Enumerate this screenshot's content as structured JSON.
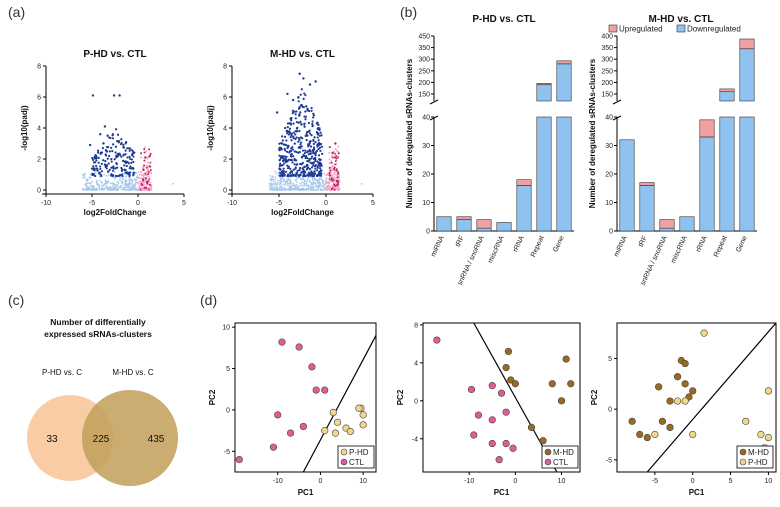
{
  "panel_labels": {
    "a": "(a)",
    "b": "(b)",
    "c": "(c)",
    "d": "(d)"
  },
  "colors": {
    "sig_down": "#1f3a93",
    "ns_down": "#a9c8ea",
    "sig_up": "#c2185b",
    "ns_up": "#f4a6c8",
    "bar_down": "#8fc2ef",
    "bar_up": "#f0a0a0",
    "venn_phd": "#f9c9a0",
    "venn_mhd": "#c29f58",
    "pca_phd": "#f2d68a",
    "pca_ctl": "#e35a9a",
    "pca_mhd": "#9a6a22"
  },
  "chart_data": [
    {
      "id": "volcano_phd",
      "type": "scatter",
      "title": "P-HD vs. CTL",
      "xlabel": "log2FoldChange",
      "ylabel": "-log10(padj)",
      "xlim": [
        -10,
        5
      ],
      "ylim": [
        0,
        8
      ],
      "xticks": [
        "-10",
        "-5",
        "0",
        "5"
      ],
      "yticks": [
        "0",
        "2",
        "4",
        "6",
        "8"
      ],
      "sig_down": [
        [
          -4.9,
          6.1
        ],
        [
          -2.6,
          6.1
        ],
        [
          -2.0,
          6.1
        ],
        [
          -4.1,
          3.6
        ],
        [
          -5.2,
          2.9
        ],
        [
          -3.6,
          4.1
        ],
        [
          -3.3,
          3.5
        ]
      ],
      "sig_up": [
        [
          0.6,
          1.3
        ],
        [
          0.8,
          2.1
        ],
        [
          1.0,
          0.5
        ]
      ]
    },
    {
      "id": "volcano_mhd",
      "type": "scatter",
      "title": "M-HD vs. CTL",
      "xlabel": "log2FoldChange",
      "ylabel": "-log10(padj)",
      "xlim": [
        -10,
        5
      ],
      "ylim": [
        0,
        8
      ],
      "xticks": [
        "-10",
        "-5",
        "0",
        "5"
      ],
      "yticks": [
        "0",
        "2",
        "4",
        "6",
        "8"
      ],
      "sig_down": [
        [
          -2.8,
          7.5
        ],
        [
          -2.4,
          7.2
        ],
        [
          -1.7,
          6.8
        ],
        [
          -1.1,
          7.0
        ],
        [
          -4.1,
          6.2
        ],
        [
          -3.5,
          5.8
        ],
        [
          -5.2,
          5.0
        ],
        [
          -2.1,
          5.4
        ]
      ],
      "sig_up": [
        [
          0.7,
          2.4
        ],
        [
          1.0,
          3.0
        ],
        [
          1.2,
          0.6
        ]
      ]
    },
    {
      "id": "bars_phd",
      "type": "bar",
      "stacked": true,
      "title": "P-HD vs. CTL",
      "ylabel": "Number of deregulated sRNAs-clusters",
      "categories": [
        "miRNA",
        "tRF",
        "snRNA / snoRNA",
        "miscRNA",
        "rRNA",
        "Repeat",
        "Gene"
      ],
      "lower_yticks": [
        "0",
        "10",
        "20",
        "30",
        "40"
      ],
      "upper_yticks": [
        "150",
        "200",
        "250",
        "300",
        "350",
        "450"
      ],
      "series": [
        {
          "name": "Downregulated",
          "values": [
            5,
            4,
            1,
            3,
            16,
            190,
            280
          ]
        },
        {
          "name": "Upregulated",
          "values": [
            0,
            1,
            3,
            0,
            2,
            6,
            13
          ]
        }
      ]
    },
    {
      "id": "bars_mhd",
      "type": "bar",
      "stacked": true,
      "title": "M-HD vs. CTL",
      "ylabel": "Number of deregulated sRNAs-clusters",
      "categories": [
        "miRNA",
        "tRF",
        "snRNA / snoRNA",
        "miscRNA",
        "rRNA",
        "Repeat",
        "Gene"
      ],
      "legend": [
        "Upregulated",
        "Downregulated"
      ],
      "lower_yticks": [
        "0",
        "10",
        "20",
        "30",
        "40"
      ],
      "upper_yticks": [
        "150",
        "200",
        "250",
        "300",
        "350",
        "400"
      ],
      "series": [
        {
          "name": "Downregulated",
          "values": [
            32,
            16,
            1,
            5,
            33,
            160,
            345
          ]
        },
        {
          "name": "Upregulated",
          "values": [
            0,
            1,
            3,
            0,
            6,
            12,
            42
          ]
        }
      ]
    },
    {
      "id": "venn",
      "type": "venn",
      "title_lines": [
        "Number of differentially",
        "expressed sRNAs-clusters"
      ],
      "set_labels": [
        "P-HD vs. C",
        "M-HD vs. C"
      ],
      "values": {
        "only_a": "33",
        "both": "225",
        "only_b": "435"
      }
    },
    {
      "id": "pca_phd_ctl",
      "type": "scatter",
      "xlabel": "PC1",
      "ylabel": "PC2",
      "xlim": [
        -20,
        13
      ],
      "ylim": [
        -7.5,
        10.5
      ],
      "xticks": [
        -10,
        0,
        10
      ],
      "yticks": [
        -5,
        0,
        5,
        10
      ],
      "divider": [
        [
          -4,
          -7.5
        ],
        [
          13,
          9
        ]
      ],
      "legend": [
        "P-HD",
        "CTL"
      ],
      "groups": [
        {
          "name": "P-HD",
          "points": [
            [
              1,
              -2.5
            ],
            [
              4,
              -1.5
            ],
            [
              3.5,
              -2.8
            ],
            [
              6,
              -2.2
            ],
            [
              7,
              -2.6
            ],
            [
              9.5,
              0.2
            ],
            [
              10,
              -0.6
            ],
            [
              10,
              -1.8
            ],
            [
              9,
              0.2
            ],
            [
              3,
              -0.3
            ]
          ]
        },
        {
          "name": "CTL",
          "points": [
            [
              -19,
              -6
            ],
            [
              -9,
              8.2
            ],
            [
              -5,
              7.6
            ],
            [
              -2,
              5.2
            ],
            [
              -4,
              -2
            ],
            [
              -10,
              -0.6
            ],
            [
              -11,
              -4.5
            ],
            [
              -1,
              2.4
            ],
            [
              1,
              2.4
            ],
            [
              -7,
              -2.8
            ]
          ]
        }
      ]
    },
    {
      "id": "pca_mhd_ctl",
      "type": "scatter",
      "xlabel": "PC1",
      "ylabel": "PC2",
      "xlim": [
        -20,
        14
      ],
      "ylim": [
        -7.5,
        8.2
      ],
      "xticks": [
        -10,
        0,
        10
      ],
      "yticks": [
        -4,
        0,
        4,
        8
      ],
      "divider": [
        [
          -9,
          8.2
        ],
        [
          9,
          -7.5
        ]
      ],
      "legend": [
        "M-HD",
        "CTL"
      ],
      "groups": [
        {
          "name": "M-HD",
          "points": [
            [
              -1.5,
              5.2
            ],
            [
              -2,
              3.5
            ],
            [
              -1,
              2.2
            ],
            [
              0,
              1.8
            ],
            [
              11,
              4.4
            ],
            [
              8,
              1.8
            ],
            [
              12,
              1.8
            ],
            [
              10,
              0
            ],
            [
              3.5,
              -2.8
            ],
            [
              6,
              -4.2
            ]
          ]
        },
        {
          "name": "CTL",
          "points": [
            [
              -17,
              6.4
            ],
            [
              -9.5,
              1.2
            ],
            [
              -5,
              1.6
            ],
            [
              -3,
              0.8
            ],
            [
              -8,
              -1.5
            ],
            [
              -5,
              -2
            ],
            [
              -2,
              -1.2
            ],
            [
              -9,
              -3.6
            ],
            [
              -5,
              -4.5
            ],
            [
              -2,
              -4.5
            ],
            [
              -3.5,
              -6.2
            ],
            [
              -0.5,
              -5
            ]
          ]
        }
      ]
    },
    {
      "id": "pca_mhd_phd",
      "type": "scatter",
      "xlabel": "PC1",
      "ylabel": "PC2",
      "xlim": [
        -10,
        11
      ],
      "ylim": [
        -6.2,
        8.5
      ],
      "xticks": [
        -5,
        0,
        5,
        10
      ],
      "yticks": [
        -5,
        0,
        5
      ],
      "divider": [
        [
          -6,
          -6.2
        ],
        [
          11,
          8.5
        ]
      ],
      "legend": [
        "M-HD",
        "P-HD"
      ],
      "groups": [
        {
          "name": "M-HD",
          "points": [
            [
              -8,
              -1.2
            ],
            [
              -7,
              -2.5
            ],
            [
              -6,
              -2.8
            ],
            [
              -4,
              -1.2
            ],
            [
              -4.5,
              2.2
            ],
            [
              -3,
              0.8
            ],
            [
              -2,
              3.2
            ],
            [
              -1.5,
              4.8
            ],
            [
              -1,
              4.5
            ],
            [
              -1,
              2.5
            ],
            [
              -0.5,
              1.2
            ],
            [
              0,
              1.8
            ],
            [
              -3,
              -1.8
            ]
          ]
        },
        {
          "name": "P-HD",
          "points": [
            [
              1.5,
              7.5
            ],
            [
              -2,
              0.8
            ],
            [
              -1,
              0.8
            ],
            [
              0,
              -2.5
            ],
            [
              -5,
              -2.5
            ],
            [
              7,
              -1.2
            ],
            [
              9,
              -2.5
            ],
            [
              10,
              -2.8
            ],
            [
              9.5,
              -3.8
            ],
            [
              10,
              1.8
            ]
          ]
        }
      ]
    }
  ]
}
